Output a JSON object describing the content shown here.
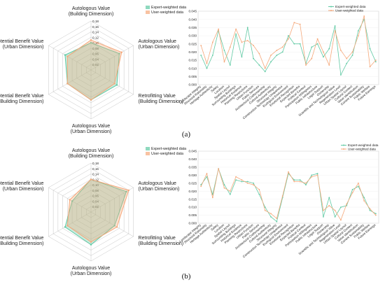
{
  "panels": [
    {
      "label": "(a)"
    },
    {
      "label": "(b)"
    }
  ],
  "colors": {
    "expert": "#5fc9a3",
    "user": "#f5a87a",
    "grid": "#b8b8b8",
    "overlap": "#c9b79a"
  },
  "chart_data": [
    {
      "type": "radar",
      "legend": [
        "Expert-weighted data",
        "User-weighted data"
      ],
      "legend_position": "top",
      "axes": [
        "Autologous Value (Building Dimension)",
        "Autologous Value (Urban Dimension)",
        "Retrofitting Value (Building Dimension)",
        "Autologous Value (Urban Dimension)",
        "Potential Benefit Value (Building Dimension)",
        "Potential Benefit Value (Urban Dimension)"
      ],
      "axis_lines": [
        [
          "Autologous Value",
          "(Building Dimension)"
        ],
        [
          "Autologous Value",
          "(Urban Dimension)"
        ],
        [
          "Retrofitting Value",
          "(Building Dimension)"
        ],
        [
          "Autologous Value",
          "(Urban Dimension)"
        ],
        [
          "Potential Benefit Value",
          "(Building Dimension)"
        ],
        [
          "Potential Benefit Value",
          "(Urban Dimension)"
        ]
      ],
      "ticks": [
        "0.02",
        "0.04",
        "0.06",
        "0.08",
        "0.10",
        "0.12",
        "0.14",
        "0.16",
        "0.18"
      ],
      "rmax": 0.18,
      "series": [
        {
          "name": "Expert-weighted data",
          "values": [
            0.1,
            0.12,
            0.11,
            0.11,
            0.1,
            0.11
          ]
        },
        {
          "name": "User-weighted data",
          "values": [
            0.11,
            0.13,
            0.1,
            0.11,
            0.1,
            0.1
          ]
        }
      ]
    },
    {
      "type": "line",
      "legend": [
        "Expert-weighted data",
        "User-weighted data"
      ],
      "legend_position": "top-right",
      "categories": [
        "Landscape Integrity",
        "Structural Rationality",
        "Heritage Authenticity",
        "Safety",
        "Location",
        "Spatial Layout",
        "Surrounding Buildings",
        "Historical Evidence",
        "Planning Restrictions",
        "Urban Function",
        "Public Services",
        "Architectural Craftsmanship",
        "Cultural Authenticity",
        "Structural Integrity",
        "Construction Technology Uniqueness",
        "Ecological Environment",
        "Emotional Recognition",
        "Expected Benefits",
        "Political Context",
        "Participation Willingness",
        "Public Infrastructure",
        "Legal Support",
        "Ownership",
        "Scientific and Technological Value",
        "Regeneration Level",
        "Urban Spatial Layout",
        "Cultural Context",
        "Value Identification",
        "Current Sustainability",
        "Public Welfare",
        "Future Earnings"
      ],
      "ylim": [
        0,
        0.045
      ],
      "yticks": [
        "0.000",
        "0.005",
        "0.010",
        "0.015",
        "0.020",
        "0.025",
        "0.030",
        "0.035",
        "0.040",
        "0.045"
      ],
      "series": [
        {
          "name": "Expert-weighted data",
          "values": [
            0.018,
            0.01,
            0.018,
            0.033,
            0.021,
            0.012,
            0.031,
            0.017,
            0.035,
            0.016,
            0.012,
            0.008,
            0.014,
            0.018,
            0.02,
            0.03,
            0.025,
            0.025,
            0.013,
            0.023,
            0.025,
            0.017,
            0.022,
            0.036,
            0.006,
            0.013,
            0.018,
            0.033,
            0.04,
            0.022,
            0.014
          ]
        },
        {
          "name": "User-weighted data",
          "values": [
            0.024,
            0.013,
            0.026,
            0.034,
            0.014,
            0.023,
            0.034,
            0.026,
            0.027,
            0.024,
            0.019,
            0.01,
            0.018,
            0.021,
            0.023,
            0.028,
            0.038,
            0.037,
            0.012,
            0.016,
            0.028,
            0.02,
            0.012,
            0.033,
            0.021,
            0.016,
            0.02,
            0.03,
            0.042,
            0.011,
            0.015
          ]
        }
      ]
    },
    {
      "type": "radar",
      "legend": [
        "Expert-weighted data",
        "User-weighted data"
      ],
      "legend_position": "top",
      "axes": [
        "Autologous Value (Building Dimension)",
        "Autologous Value (Urban Dimension)",
        "Retrofitting Value (Building Dimension)",
        "Autologous Value (Urban Dimension)",
        "Potential Benefit Value (Building Dimension)",
        "Potential Benefit Value (Urban Dimension)"
      ],
      "axis_lines": [
        [
          "Autologous Value",
          "(Building Dimension)"
        ],
        [
          "Autologous Value",
          "(Urban Dimension)"
        ],
        [
          "Retrofitting Value",
          "(Building Dimension)"
        ],
        [
          "Autologous Value",
          "(Urban Dimension)"
        ],
        [
          "Potential Benefit Value",
          "(Building Dimension)"
        ],
        [
          "Potential Benefit Value",
          "(Urban Dimension)"
        ]
      ],
      "ticks": [
        "0.02",
        "0.04",
        "0.06",
        "0.08",
        "0.10",
        "0.12",
        "0.14",
        "0.16",
        "0.18"
      ],
      "rmax": 0.18,
      "series": [
        {
          "name": "Expert-weighted data",
          "values": [
            0.12,
            0.15,
            0.1,
            0.12,
            0.11,
            0.08
          ]
        },
        {
          "name": "User-weighted data",
          "values": [
            0.12,
            0.16,
            0.11,
            0.11,
            0.1,
            0.09
          ]
        }
      ]
    },
    {
      "type": "line",
      "legend": [
        "Expert-weighted data",
        "User-weighted data"
      ],
      "legend_position": "top-right",
      "categories": [
        "Landscape Integrity",
        "Structural Rationality",
        "Heritage Authenticity",
        "Safety",
        "Location",
        "Spatial Layout",
        "Surrounding Buildings",
        "Historical Evidence",
        "Planning Restrictions",
        "Urban Function",
        "Public Services",
        "Architectural Craftsmanship",
        "Cultural Authenticity",
        "Structural Integrity",
        "Construction Technology Uniqueness",
        "Ecological Environment",
        "Emotional Recognition",
        "Expected Benefits",
        "Political Context",
        "Participation Willingness",
        "Public Infrastructure",
        "Legal Support",
        "Ownership",
        "Scientific and Technological Value",
        "Regeneration Level",
        "Urban Spatial Layout",
        "Cultural Context",
        "Value Identification",
        "Current Sustainability",
        "Public Welfare",
        "Future Earnings"
      ],
      "ylim": [
        0,
        0.045
      ],
      "yticks": [
        "0.000",
        "0.005",
        "0.010",
        "0.015",
        "0.020",
        "0.025",
        "0.030",
        "0.035",
        "0.040",
        "0.045"
      ],
      "series": [
        {
          "name": "Expert-weighted data",
          "values": [
            0.024,
            0.029,
            0.018,
            0.034,
            0.024,
            0.018,
            0.027,
            0.026,
            0.026,
            0.025,
            0.018,
            0.01,
            0.004,
            0.001,
            0.016,
            0.031,
            0.027,
            0.027,
            0.024,
            0.03,
            0.031,
            0.004,
            0.016,
            0.004,
            0.01,
            0.011,
            0.021,
            0.023,
            0.016,
            0.008,
            0.006
          ]
        },
        {
          "name": "User-weighted data",
          "values": [
            0.023,
            0.031,
            0.016,
            0.034,
            0.022,
            0.02,
            0.029,
            0.027,
            0.025,
            0.024,
            0.021,
            0.008,
            0.006,
            0.003,
            0.017,
            0.032,
            0.026,
            0.026,
            0.025,
            0.029,
            0.03,
            0.008,
            0.011,
            0.008,
            0.002,
            0.012,
            0.019,
            0.025,
            0.014,
            0.009,
            0.005
          ]
        }
      ]
    }
  ]
}
